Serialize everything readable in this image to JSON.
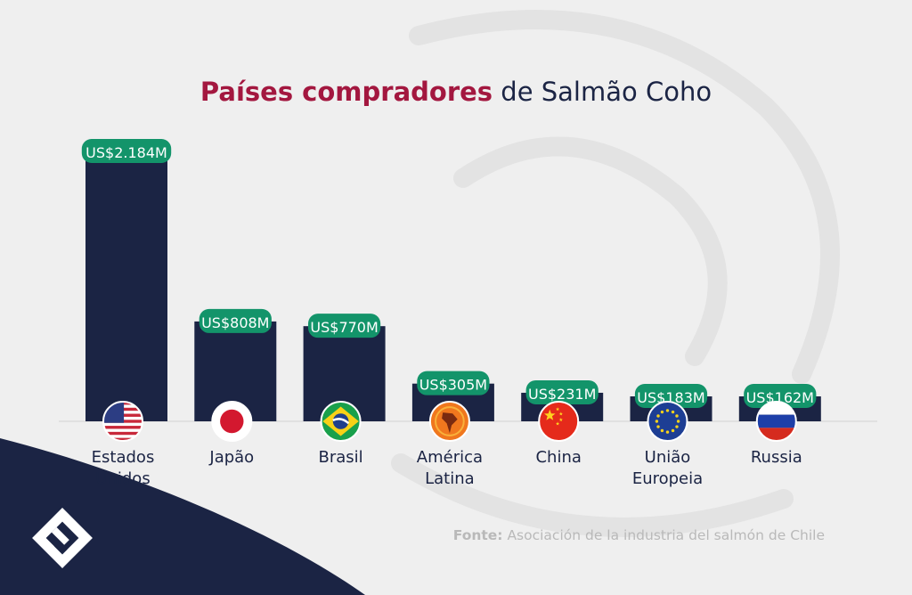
{
  "title": {
    "bold": "Países compradores",
    "rest": "de Salmão Coho"
  },
  "source": {
    "label": "Fonte:",
    "text": "Asociación de la industria del salmón de Chile"
  },
  "colors": {
    "bar": "#1b2444",
    "label_bg": "#13946a",
    "title_accent": "#a3173f",
    "background": "#efefef"
  },
  "icons": {
    "logo": "stylized-e-logo-icon"
  },
  "chart_data": {
    "type": "bar",
    "title": "Países compradores de Salmão Coho",
    "categories": [
      [
        "Estados",
        "Unidos"
      ],
      [
        "Japão"
      ],
      [
        "Brasil"
      ],
      [
        "América",
        "Latina"
      ],
      [
        "China"
      ],
      [
        "União",
        "Europeia"
      ],
      [
        "Russia"
      ]
    ],
    "values": [
      2184,
      808,
      770,
      305,
      231,
      183,
      162
    ],
    "data_labels": [
      "US$2.184M",
      "US$808M",
      "US$770M",
      "US$305M",
      "US$231M",
      "US$183M",
      "US$162M"
    ],
    "flags": [
      "usa-flag-icon",
      "japan-flag-icon",
      "brazil-flag-icon",
      "latin-america-icon",
      "china-flag-icon",
      "eu-flag-icon",
      "russia-flag-icon"
    ],
    "unit": "US$ milhões",
    "ylim": [
      0,
      2184
    ],
    "grid": false,
    "legend": "none"
  }
}
